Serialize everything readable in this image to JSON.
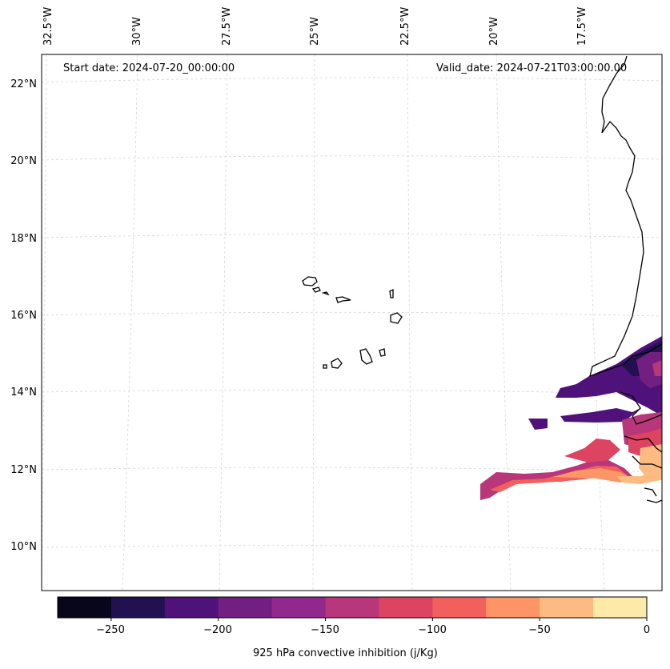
{
  "map": {
    "start_label": "Start date: 2024-07-20_00:00:00",
    "valid_label": "Valid_date: 2024-07-21T03:00:00.00",
    "lon_labels": [
      "32.5°W",
      "30°W",
      "27.5°W",
      "25°W",
      "22.5°W",
      "20°W",
      "17.5°W"
    ],
    "lat_labels": [
      "22°N",
      "20°N",
      "18°N",
      "16°N",
      "14°N",
      "12°N",
      "10°N"
    ]
  },
  "colorbar": {
    "title": "925 hPa convective inhibition (j/Kg)",
    "ticks": [
      "−250",
      "−200",
      "−150",
      "−100",
      "−50",
      "0"
    ],
    "levels": [
      -275,
      -250,
      -225,
      -200,
      -175,
      -150,
      -125,
      -100,
      -75,
      -50,
      -25,
      0
    ],
    "colors": [
      "#07061b",
      "#221150",
      "#4f127b",
      "#721f81",
      "#92278d",
      "#b7377a",
      "#dc4461",
      "#f1605d",
      "#fd9567",
      "#febb81",
      "#fde9a8"
    ]
  }
}
